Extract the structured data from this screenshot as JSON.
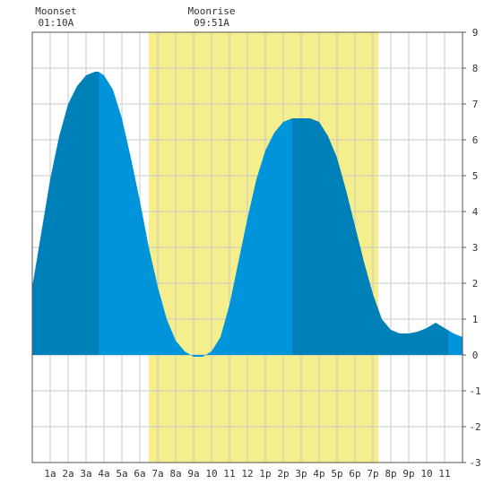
{
  "chart_data": {
    "type": "area",
    "title": "",
    "xlabel": "",
    "ylabel": "",
    "x_ticks": [
      "1a",
      "2a",
      "3a",
      "4a",
      "5a",
      "6a",
      "7a",
      "8a",
      "9a",
      "10",
      "11",
      "12",
      "1p",
      "2p",
      "3p",
      "4p",
      "5p",
      "6p",
      "7p",
      "8p",
      "9p",
      "10",
      "11"
    ],
    "y_ticks": [
      "9",
      "8",
      "7",
      "6",
      "5",
      "4",
      "3",
      "2",
      "1",
      "0",
      "-1",
      "-2",
      "-3"
    ],
    "xlim": [
      0,
      24
    ],
    "ylim": [
      -3,
      9
    ],
    "grid": true,
    "daylight": {
      "start_hour": 6.5,
      "end_hour": 19.3
    },
    "moon_events": [
      {
        "label": "Moonset",
        "time": "01:10A",
        "hour": 1.17
      },
      {
        "label": "Moonrise",
        "time": "09:51A",
        "hour": 9.85
      }
    ],
    "series": [
      {
        "x": [
          0,
          0.5,
          1,
          1.5,
          2,
          2.5,
          3,
          3.5,
          3.7,
          4,
          4.5,
          5,
          5.5,
          6,
          6.5,
          7,
          7.5,
          8,
          8.5,
          9,
          9.5,
          10,
          10.5,
          11,
          11.5,
          12,
          12.5,
          13,
          13.5,
          14,
          14.5,
          15,
          15.5,
          16,
          16.5,
          17,
          17.5,
          18,
          18.5,
          19,
          19.5,
          20,
          20.5,
          21,
          21.5,
          22,
          22.5,
          23,
          23.5,
          24
        ],
        "y": [
          1.9,
          3.4,
          4.9,
          6.1,
          7.0,
          7.5,
          7.8,
          7.9,
          7.9,
          7.8,
          7.4,
          6.6,
          5.5,
          4.3,
          3.0,
          1.9,
          1.0,
          0.4,
          0.1,
          -0.05,
          -0.05,
          0.1,
          0.5,
          1.4,
          2.6,
          3.8,
          4.9,
          5.7,
          6.2,
          6.5,
          6.6,
          6.6,
          6.6,
          6.5,
          6.1,
          5.5,
          4.6,
          3.6,
          2.6,
          1.7,
          1.0,
          0.7,
          0.6,
          0.6,
          0.65,
          0.75,
          0.9,
          0.75,
          0.6,
          0.5
        ],
        "shading_breaks": [
          3.7,
          14.5,
          23.2
        ]
      }
    ],
    "colors": {
      "water_light": "#0095DA",
      "water_dark": "#0080B8",
      "daylight": "#F5EE8C",
      "grid": "#C8C8C8",
      "axis": "#555555"
    }
  }
}
